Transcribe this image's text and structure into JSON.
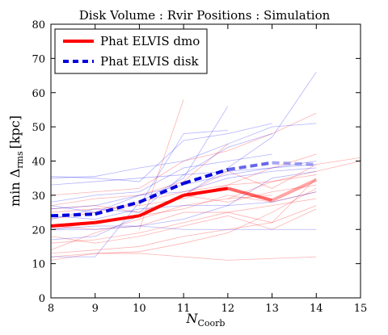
{
  "chart_data": {
    "type": "line",
    "title": "Disk   Volume : Rvir   Positions : Simulation",
    "xlabel_main": "N",
    "xlabel_sub": "Coorb",
    "ylabel_main": "min Δ",
    "ylabel_sub": "rms",
    "ylabel_unit": "[kpc]",
    "xlim": [
      8,
      15
    ],
    "ylim": [
      0,
      80
    ],
    "xticks": [
      "8",
      "9",
      "10",
      "11",
      "12",
      "13",
      "14",
      "15"
    ],
    "yticks": [
      "0",
      "10",
      "20",
      "30",
      "40",
      "50",
      "60",
      "70",
      "80"
    ],
    "grid": false,
    "legend_position": "top-left",
    "series": [
      {
        "name": "Phat ELVIS dmo",
        "color": "#ff0000",
        "style": "solid",
        "x": [
          8,
          9,
          10,
          11,
          12,
          13,
          14
        ],
        "values": [
          21,
          22,
          24,
          30,
          32,
          28.5,
          34.5
        ]
      },
      {
        "name": "Phat ELVIS disk",
        "color": "#0000dd",
        "style": "dashed",
        "x": [
          8,
          9,
          10,
          11,
          12,
          13,
          14
        ],
        "values": [
          24,
          24.5,
          28,
          33.5,
          37.5,
          39.5,
          39
        ]
      }
    ],
    "individual_red": [
      [
        [
          8,
          25
        ],
        [
          9,
          26
        ],
        [
          10,
          27
        ],
        [
          11,
          29
        ],
        [
          12,
          33
        ],
        [
          13,
          38
        ],
        [
          14,
          42
        ]
      ],
      [
        [
          8,
          20
        ],
        [
          9,
          22
        ],
        [
          10,
          24
        ],
        [
          11,
          26
        ],
        [
          12,
          30
        ],
        [
          13,
          28
        ],
        [
          14,
          31
        ]
      ],
      [
        [
          8,
          16
        ],
        [
          9,
          17
        ],
        [
          10,
          19
        ],
        [
          11,
          22
        ],
        [
          12,
          25
        ],
        [
          13,
          27
        ],
        [
          14,
          29
        ]
      ],
      [
        [
          8,
          13
        ],
        [
          9,
          14
        ],
        [
          10,
          15
        ],
        [
          11,
          18
        ],
        [
          12,
          20
        ],
        [
          13,
          22
        ],
        [
          14,
          35
        ]
      ],
      [
        [
          8,
          11
        ],
        [
          9,
          13
        ],
        [
          10,
          13.5
        ],
        [
          11,
          16
        ],
        [
          12,
          19
        ],
        [
          13,
          25
        ],
        [
          14,
          32
        ]
      ],
      [
        [
          8,
          30
        ],
        [
          9,
          31
        ],
        [
          10,
          32
        ],
        [
          11,
          40
        ],
        [
          12,
          43
        ],
        [
          13,
          48
        ],
        [
          14,
          54
        ]
      ],
      [
        [
          8,
          23
        ],
        [
          9,
          25
        ],
        [
          10,
          28
        ],
        [
          11,
          31
        ],
        [
          12,
          33
        ],
        [
          13,
          34
        ],
        [
          14,
          36
        ]
      ],
      [
        [
          8,
          21
        ],
        [
          9,
          20
        ],
        [
          10,
          21
        ],
        [
          11,
          25
        ],
        [
          12,
          25
        ],
        [
          13,
          22
        ],
        [
          14,
          27
        ]
      ],
      [
        [
          10,
          20
        ],
        [
          11,
          58
        ]
      ],
      [
        [
          8,
          27
        ],
        [
          9,
          29
        ],
        [
          10,
          30
        ],
        [
          11,
          34
        ],
        [
          12,
          45
        ]
      ],
      [
        [
          8,
          14
        ],
        [
          9,
          19
        ],
        [
          10,
          23
        ],
        [
          11,
          27
        ],
        [
          12,
          29
        ],
        [
          13,
          30
        ]
      ],
      [
        [
          8,
          12
        ],
        [
          9,
          13
        ],
        [
          10,
          13
        ],
        [
          11,
          12
        ],
        [
          12,
          11
        ],
        [
          13,
          11.5
        ],
        [
          14,
          12
        ]
      ],
      [
        [
          8,
          26
        ],
        [
          9,
          27
        ],
        [
          10,
          25
        ],
        [
          11,
          30
        ],
        [
          12,
          28
        ],
        [
          13,
          31
        ],
        [
          14,
          33
        ]
      ],
      [
        [
          8,
          18
        ],
        [
          9,
          16
        ],
        [
          10,
          18
        ],
        [
          11,
          21
        ],
        [
          12,
          24
        ],
        [
          13,
          20
        ],
        [
          14,
          26
        ]
      ],
      [
        [
          11,
          30
        ],
        [
          12,
          37
        ],
        [
          13,
          32
        ],
        [
          14,
          39
        ],
        [
          15,
          41
        ]
      ],
      [
        [
          12,
          29
        ],
        [
          13,
          34
        ],
        [
          14,
          37
        ],
        [
          15,
          40
        ]
      ]
    ],
    "individual_blue": [
      [
        [
          8,
          35
        ],
        [
          9,
          35.5
        ],
        [
          10,
          38
        ],
        [
          11,
          40
        ],
        [
          12,
          45
        ],
        [
          13,
          50
        ],
        [
          14,
          51
        ]
      ],
      [
        [
          8,
          35.5
        ],
        [
          9,
          35
        ],
        [
          10,
          34
        ],
        [
          11,
          46
        ],
        [
          12,
          48
        ],
        [
          13,
          51
        ]
      ],
      [
        [
          8,
          17
        ],
        [
          9,
          18
        ],
        [
          10,
          24
        ],
        [
          11,
          30
        ],
        [
          12,
          38
        ],
        [
          13,
          47
        ],
        [
          14,
          66
        ]
      ],
      [
        [
          8,
          12
        ],
        [
          9,
          12
        ],
        [
          10,
          28
        ],
        [
          11,
          35
        ],
        [
          12,
          56
        ]
      ],
      [
        [
          8,
          23
        ],
        [
          9,
          26
        ],
        [
          10,
          25
        ],
        [
          11,
          36
        ],
        [
          12,
          44
        ],
        [
          13,
          48
        ]
      ],
      [
        [
          8,
          26
        ],
        [
          9,
          27
        ],
        [
          10,
          30
        ],
        [
          11,
          33
        ],
        [
          12,
          36
        ],
        [
          13,
          38
        ],
        [
          14,
          40
        ]
      ],
      [
        [
          8,
          20
        ],
        [
          9,
          21
        ],
        [
          10,
          21
        ],
        [
          11,
          23
        ],
        [
          12,
          27
        ],
        [
          13,
          35
        ],
        [
          14,
          37
        ]
      ],
      [
        [
          8,
          28
        ],
        [
          9,
          30
        ],
        [
          10,
          31
        ],
        [
          11,
          38
        ],
        [
          12,
          40
        ],
        [
          13,
          42
        ]
      ],
      [
        [
          8,
          33
        ],
        [
          9,
          34
        ],
        [
          10,
          35
        ],
        [
          11,
          36
        ],
        [
          12,
          37
        ],
        [
          13,
          38
        ],
        [
          14,
          39
        ]
      ],
      [
        [
          8,
          24
        ],
        [
          9,
          23
        ],
        [
          10,
          26
        ],
        [
          11,
          27
        ],
        [
          12,
          27
        ],
        [
          13,
          28
        ],
        [
          14,
          31
        ]
      ],
      [
        [
          10,
          27
        ],
        [
          11,
          48
        ],
        [
          12,
          49
        ]
      ],
      [
        [
          8,
          20
        ],
        [
          9,
          20
        ],
        [
          10,
          21
        ],
        [
          11,
          20
        ],
        [
          12,
          20
        ],
        [
          13,
          20
        ],
        [
          14,
          20
        ]
      ],
      [
        [
          8,
          27
        ],
        [
          9,
          25
        ],
        [
          10,
          30
        ],
        [
          11,
          31
        ],
        [
          12,
          35
        ],
        [
          13,
          37
        ],
        [
          14,
          38
        ]
      ]
    ]
  }
}
